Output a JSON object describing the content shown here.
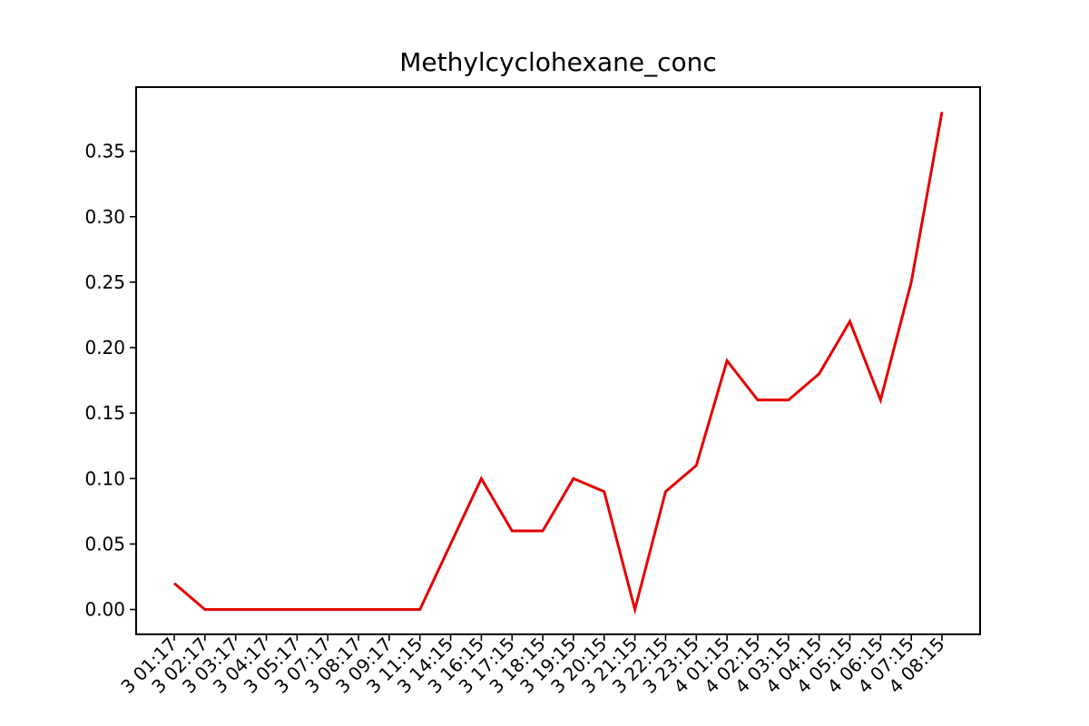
{
  "chart_data": {
    "type": "line",
    "title": "Methylcyclohexane_conc",
    "xlabel": "",
    "ylabel": "",
    "x": [
      "2023-01-13 01:17",
      "2023-01-13 02:17",
      "2023-01-13 03:17",
      "2023-01-13 04:17",
      "2023-01-13 05:17",
      "2023-01-13 07:17",
      "2023-01-13 08:17",
      "2023-01-13 09:17",
      "2023-01-13 11:15",
      "2023-01-13 14:15",
      "2023-01-13 16:15",
      "2023-01-13 17:15",
      "2023-01-13 18:15",
      "2023-01-13 19:15",
      "2023-01-13 20:15",
      "2023-01-13 21:15",
      "2023-01-13 22:15",
      "2023-01-13 23:15",
      "2023-01-14 01:15",
      "2023-01-14 02:15",
      "2023-01-14 03:15",
      "2023-01-14 04:15",
      "2023-01-14 05:15",
      "2023-01-14 06:15",
      "2023-01-14 07:15",
      "2023-01-14 08:15"
    ],
    "x_tick_labels": [
      "3 01:17",
      "3 02:17",
      "3 03:17",
      "3 04:17",
      "3 05:17",
      "3 07:17",
      "3 08:17",
      "3 09:17",
      "3 11:15",
      "3 14:15",
      "3 16:15",
      "3 17:15",
      "3 18:15",
      "3 19:15",
      "3 20:15",
      "3 21:15",
      "3 22:15",
      "3 23:15",
      "4 01:15",
      "4 02:15",
      "4 03:15",
      "4 04:15",
      "4 05:15",
      "4 06:15",
      "4 07:15",
      "4 08:15"
    ],
    "series": [
      {
        "values": [
          0.02,
          0.0,
          0.0,
          0.0,
          0.0,
          0.0,
          0.0,
          0.0,
          0.0,
          0.05,
          0.1,
          0.06,
          0.06,
          0.1,
          0.09,
          0.0,
          0.09,
          0.11,
          0.19,
          0.16,
          0.16,
          0.18,
          0.22,
          0.16,
          0.25,
          0.38
        ],
        "color": "#e60000"
      }
    ],
    "y_ticks": [
      "0.00",
      "0.05",
      "0.10",
      "0.15",
      "0.20",
      "0.25",
      "0.30",
      "0.35"
    ],
    "ylim": [
      -0.019,
      0.399
    ],
    "grid": false,
    "legend": "none"
  }
}
